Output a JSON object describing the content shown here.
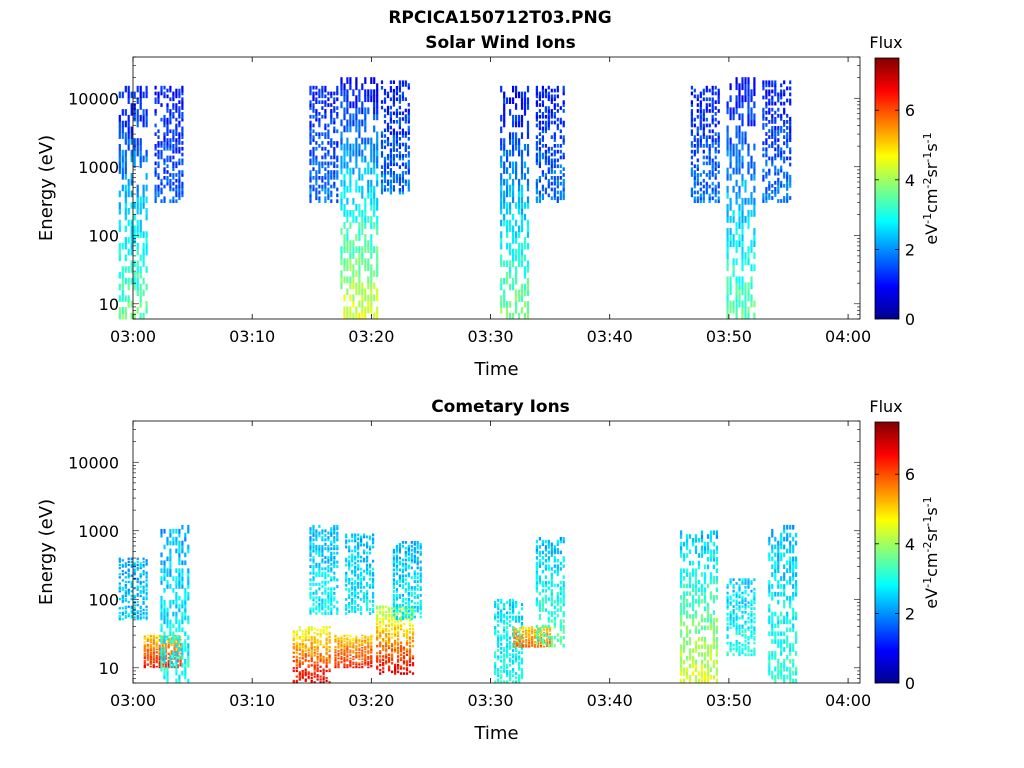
{
  "figure": {
    "title": "RPCICA150712T03.PNG"
  },
  "chart_data": [
    {
      "type": "heatmap",
      "title": "Solar Wind Ions",
      "xlabel": "Time",
      "ylabel": "Energy (eV)",
      "yscale": "log",
      "ylim": [
        6,
        40000
      ],
      "xlim": [
        "03:00",
        "04:01"
      ],
      "x_ticks": [
        "03:00",
        "03:10",
        "03:20",
        "03:30",
        "03:40",
        "03:50",
        "04:00"
      ],
      "y_ticks": [
        "10",
        "100",
        "1000",
        "10000"
      ],
      "colorbar": {
        "label": "Flux",
        "units": "eV-1cm-2sr-1s-1",
        "range": [
          0,
          7.5
        ],
        "ticks": [
          "0",
          "2",
          "4",
          "6"
        ],
        "colormap": "jet"
      },
      "bursts": [
        {
          "time": "03:00",
          "emin": 6,
          "emax": 15000,
          "intensity_low": 3.6,
          "intensity_high": 1.0
        },
        {
          "time": "03:03",
          "emin": 300,
          "emax": 15000,
          "intensity_low": 1.6,
          "intensity_high": 1.1
        },
        {
          "time": "03:16",
          "emin": 300,
          "emax": 15000,
          "intensity_low": 1.8,
          "intensity_high": 1.1
        },
        {
          "time": "03:19",
          "emin": 6,
          "emax": 20000,
          "intensity_low": 4.5,
          "intensity_high": 0.9
        },
        {
          "time": "03:22",
          "emin": 400,
          "emax": 18000,
          "intensity_low": 1.8,
          "intensity_high": 1.1
        },
        {
          "time": "03:32",
          "emin": 6,
          "emax": 15000,
          "intensity_low": 3.8,
          "intensity_high": 0.9
        },
        {
          "time": "03:35",
          "emin": 300,
          "emax": 15000,
          "intensity_low": 1.8,
          "intensity_high": 1.1
        },
        {
          "time": "03:48",
          "emin": 300,
          "emax": 15000,
          "intensity_low": 1.8,
          "intensity_high": 1.1
        },
        {
          "time": "03:51",
          "emin": 6,
          "emax": 20000,
          "intensity_low": 3.6,
          "intensity_high": 0.9
        },
        {
          "time": "03:54",
          "emin": 300,
          "emax": 18000,
          "intensity_low": 1.8,
          "intensity_high": 1.1
        }
      ]
    },
    {
      "type": "heatmap",
      "title": "Cometary Ions",
      "xlabel": "Time",
      "ylabel": "Energy (eV)",
      "yscale": "log",
      "ylim": [
        6,
        40000
      ],
      "xlim": [
        "03:00",
        "04:01"
      ],
      "x_ticks": [
        "03:00",
        "03:10",
        "03:20",
        "03:30",
        "03:40",
        "03:50",
        "04:00"
      ],
      "y_ticks": [
        "10",
        "100",
        "1000",
        "10000"
      ],
      "colorbar": {
        "label": "Flux",
        "units": "eV-1cm-2sr-1s-1",
        "range": [
          0,
          7.5
        ],
        "ticks": [
          "0",
          "2",
          "4",
          "6"
        ],
        "colormap": "jet"
      },
      "bursts": [
        {
          "time": "03:00",
          "emin": 50,
          "emax": 400,
          "intensity_low": 2.5,
          "intensity_high": 2.2
        },
        {
          "time": "03:02.5",
          "emin": 10,
          "emax": 30,
          "intensity_low": 6.5,
          "intensity_high": 5.0
        },
        {
          "time": "03:03.5",
          "emin": 6,
          "emax": 1200,
          "intensity_low": 3.0,
          "intensity_high": 2.2
        },
        {
          "time": "03:15",
          "emin": 6,
          "emax": 40,
          "intensity_low": 6.8,
          "intensity_high": 4.5
        },
        {
          "time": "03:16",
          "emin": 60,
          "emax": 1200,
          "intensity_low": 2.8,
          "intensity_high": 2.3
        },
        {
          "time": "03:18.5",
          "emin": 10,
          "emax": 30,
          "intensity_low": 6.5,
          "intensity_high": 5.0
        },
        {
          "time": "03:19",
          "emin": 60,
          "emax": 900,
          "intensity_low": 2.8,
          "intensity_high": 2.3
        },
        {
          "time": "03:22",
          "emin": 8,
          "emax": 80,
          "intensity_low": 6.8,
          "intensity_high": 4.0
        },
        {
          "time": "03:23",
          "emin": 50,
          "emax": 700,
          "intensity_low": 2.8,
          "intensity_high": 2.3
        },
        {
          "time": "03:31.5",
          "emin": 6,
          "emax": 100,
          "intensity_low": 3.0,
          "intensity_high": 2.6
        },
        {
          "time": "03:33.5",
          "emin": 20,
          "emax": 40,
          "intensity_low": 5.8,
          "intensity_high": 5.0
        },
        {
          "time": "03:35",
          "emin": 20,
          "emax": 800,
          "intensity_low": 3.5,
          "intensity_high": 2.3
        },
        {
          "time": "03:47.5",
          "emin": 6,
          "emax": 1000,
          "intensity_low": 4.5,
          "intensity_high": 2.3
        },
        {
          "time": "03:51",
          "emin": 15,
          "emax": 200,
          "intensity_low": 3.0,
          "intensity_high": 2.5
        },
        {
          "time": "03:54.5",
          "emin": 6,
          "emax": 1200,
          "intensity_low": 3.2,
          "intensity_high": 2.3
        }
      ]
    }
  ]
}
